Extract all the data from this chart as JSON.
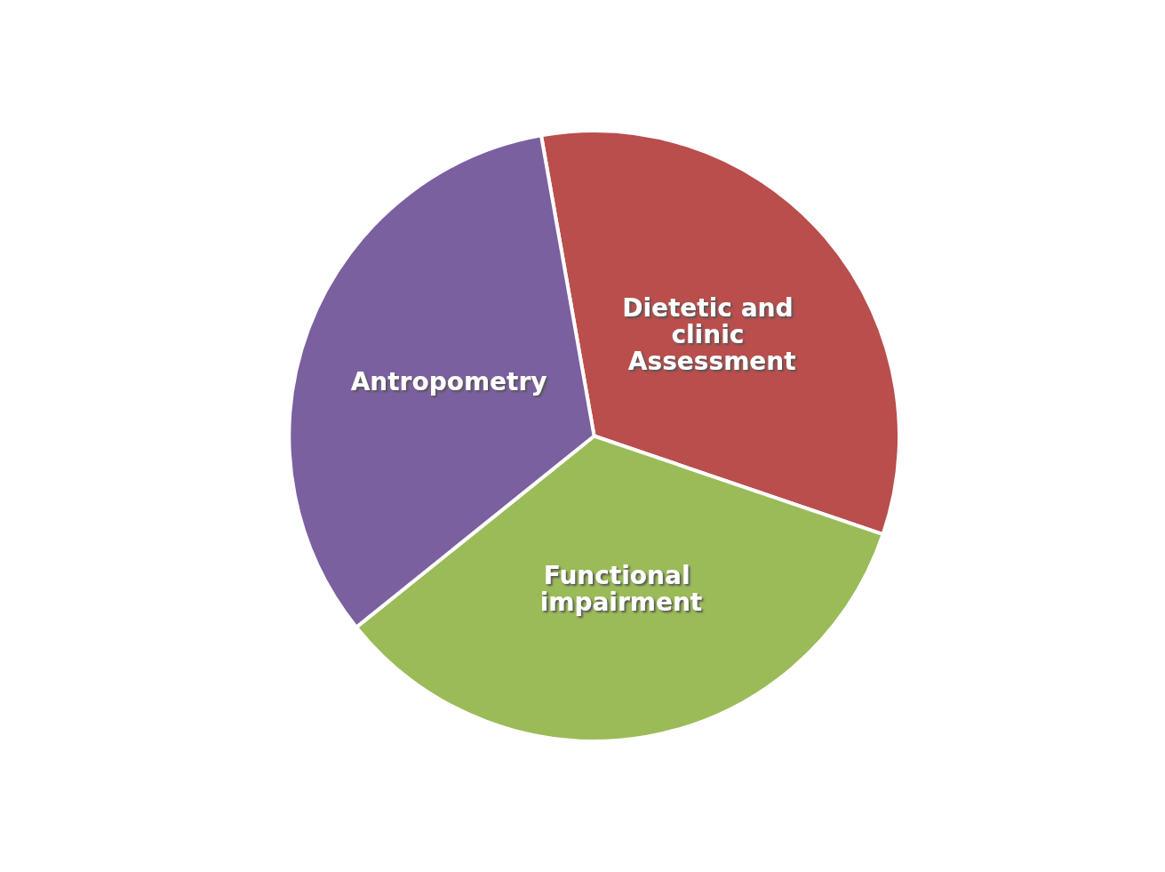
{
  "chart_data": {
    "type": "pie",
    "categories": [
      "Dietetic and clinic Assessment",
      "Functional impairment",
      "Antropometry"
    ],
    "values": [
      33,
      34,
      33
    ],
    "colors": [
      "#b94e4c",
      "#9bbb59",
      "#7b60a0"
    ],
    "legend": false
  }
}
